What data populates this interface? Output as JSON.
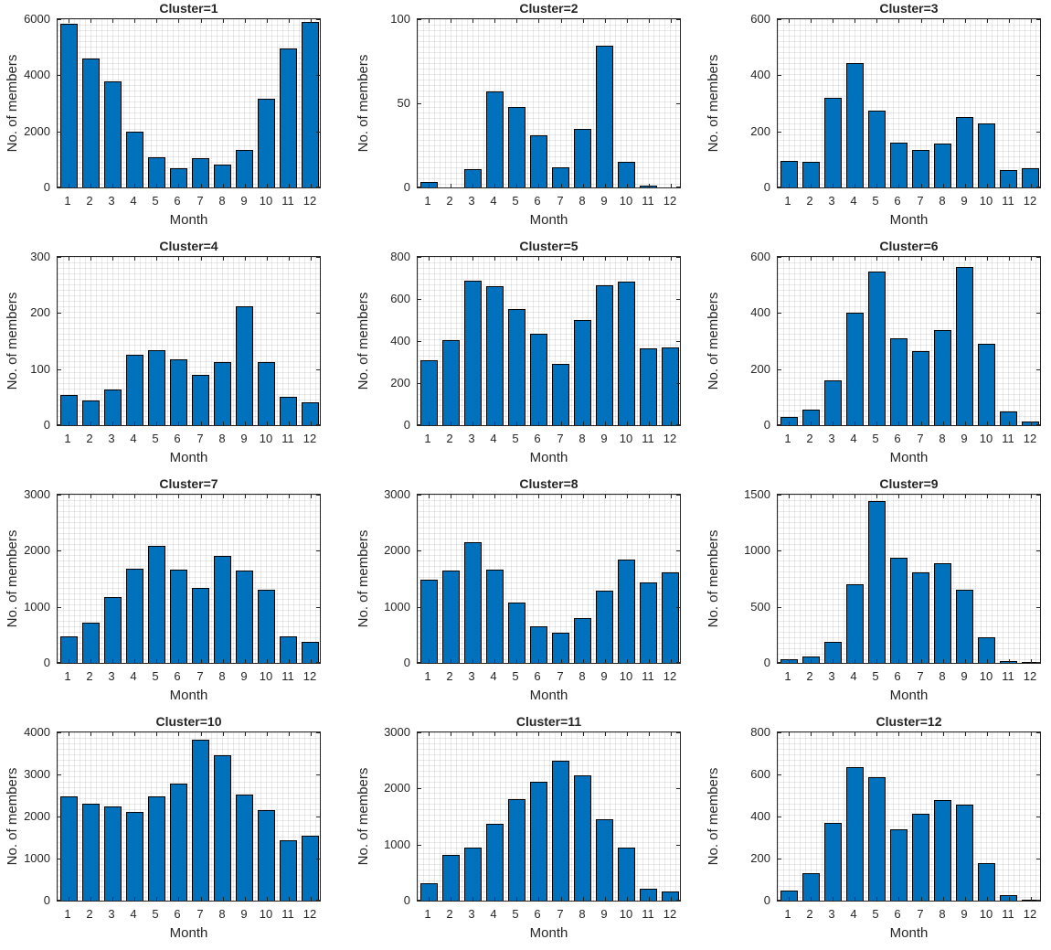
{
  "figure": {
    "background": "#ffffff",
    "bar_color": "#0072BD",
    "bar_edge_color": "#000000",
    "axis_color": "#262626",
    "tick_label_color": "#262626",
    "grid": "minor-dotted",
    "layout": "4 rows x 3 columns of bar subplots"
  },
  "chart_data": [
    {
      "type": "bar",
      "title": "Cluster=1",
      "xlabel": "Month",
      "ylabel": "No. of members",
      "categories": [
        "1",
        "2",
        "3",
        "4",
        "5",
        "6",
        "7",
        "8",
        "9",
        "10",
        "11",
        "12"
      ],
      "values": [
        5850,
        4600,
        3780,
        1980,
        1080,
        700,
        1050,
        830,
        1350,
        3150,
        4950,
        5900
      ],
      "ylim": [
        0,
        6000
      ],
      "yticks": [
        0,
        2000,
        4000,
        6000
      ],
      "legend": "none"
    },
    {
      "type": "bar",
      "title": "Cluster=2",
      "xlabel": "Month",
      "ylabel": "No. of members",
      "categories": [
        "1",
        "2",
        "3",
        "4",
        "5",
        "6",
        "7",
        "8",
        "9",
        "10",
        "11",
        "12"
      ],
      "values": [
        3,
        0,
        11,
        57,
        48,
        31,
        12,
        35,
        84,
        15,
        1,
        0
      ],
      "ylim": [
        0,
        100
      ],
      "yticks": [
        0,
        50,
        100
      ],
      "legend": "none"
    },
    {
      "type": "bar",
      "title": "Cluster=3",
      "xlabel": "Month",
      "ylabel": "No. of members",
      "categories": [
        "1",
        "2",
        "3",
        "4",
        "5",
        "6",
        "7",
        "8",
        "9",
        "10",
        "11",
        "12"
      ],
      "values": [
        95,
        92,
        320,
        443,
        275,
        160,
        135,
        157,
        252,
        228,
        62,
        68
      ],
      "ylim": [
        0,
        600
      ],
      "yticks": [
        0,
        200,
        400,
        600
      ],
      "legend": "none"
    },
    {
      "type": "bar",
      "title": "Cluster=4",
      "xlabel": "Month",
      "ylabel": "No. of members",
      "categories": [
        "1",
        "2",
        "3",
        "4",
        "5",
        "6",
        "7",
        "8",
        "9",
        "10",
        "11",
        "12"
      ],
      "values": [
        53,
        44,
        64,
        125,
        134,
        118,
        89,
        113,
        212,
        112,
        50,
        41
      ],
      "ylim": [
        0,
        300
      ],
      "yticks": [
        0,
        100,
        200,
        300
      ],
      "legend": "none"
    },
    {
      "type": "bar",
      "title": "Cluster=5",
      "xlabel": "Month",
      "ylabel": "No. of members",
      "categories": [
        "1",
        "2",
        "3",
        "4",
        "5",
        "6",
        "7",
        "8",
        "9",
        "10",
        "11",
        "12"
      ],
      "values": [
        310,
        405,
        688,
        660,
        552,
        435,
        290,
        502,
        665,
        683,
        365,
        370
      ],
      "ylim": [
        0,
        800
      ],
      "yticks": [
        0,
        200,
        400,
        600,
        800
      ],
      "legend": "none"
    },
    {
      "type": "bar",
      "title": "Cluster=6",
      "xlabel": "Month",
      "ylabel": "No. of members",
      "categories": [
        "1",
        "2",
        "3",
        "4",
        "5",
        "6",
        "7",
        "8",
        "9",
        "10",
        "11",
        "12"
      ],
      "values": [
        28,
        57,
        160,
        400,
        548,
        310,
        265,
        340,
        565,
        290,
        48,
        12
      ],
      "ylim": [
        0,
        600
      ],
      "yticks": [
        0,
        200,
        400,
        600
      ],
      "legend": "none"
    },
    {
      "type": "bar",
      "title": "Cluster=7",
      "xlabel": "Month",
      "ylabel": "No. of members",
      "categories": [
        "1",
        "2",
        "3",
        "4",
        "5",
        "6",
        "7",
        "8",
        "9",
        "10",
        "11",
        "12"
      ],
      "values": [
        470,
        720,
        1170,
        1680,
        2080,
        1670,
        1330,
        1900,
        1650,
        1310,
        470,
        380
      ],
      "ylim": [
        0,
        3000
      ],
      "yticks": [
        0,
        1000,
        2000,
        3000
      ],
      "legend": "none"
    },
    {
      "type": "bar",
      "title": "Cluster=8",
      "xlabel": "Month",
      "ylabel": "No. of members",
      "categories": [
        "1",
        "2",
        "3",
        "4",
        "5",
        "6",
        "7",
        "8",
        "9",
        "10",
        "11",
        "12"
      ],
      "values": [
        1480,
        1650,
        2150,
        1660,
        1080,
        660,
        530,
        800,
        1290,
        1840,
        1430,
        1620
      ],
      "ylim": [
        0,
        3000
      ],
      "yticks": [
        0,
        1000,
        2000,
        3000
      ],
      "legend": "none"
    },
    {
      "type": "bar",
      "title": "Cluster=9",
      "xlabel": "Month",
      "ylabel": "No. of members",
      "categories": [
        "1",
        "2",
        "3",
        "4",
        "5",
        "6",
        "7",
        "8",
        "9",
        "10",
        "11",
        "12"
      ],
      "values": [
        30,
        60,
        185,
        700,
        1440,
        940,
        810,
        890,
        650,
        230,
        20,
        10
      ],
      "ylim": [
        0,
        1500
      ],
      "yticks": [
        0,
        500,
        1000,
        1500
      ],
      "legend": "none"
    },
    {
      "type": "bar",
      "title": "Cluster=10",
      "xlabel": "Month",
      "ylabel": "No. of members",
      "categories": [
        "1",
        "2",
        "3",
        "4",
        "5",
        "6",
        "7",
        "8",
        "9",
        "10",
        "11",
        "12"
      ],
      "values": [
        2470,
        2310,
        2230,
        2110,
        2480,
        2780,
        3820,
        3460,
        2530,
        2160,
        1430,
        1540
      ],
      "ylim": [
        0,
        4000
      ],
      "yticks": [
        0,
        1000,
        2000,
        3000,
        4000
      ],
      "legend": "none"
    },
    {
      "type": "bar",
      "title": "Cluster=11",
      "xlabel": "Month",
      "ylabel": "No. of members",
      "categories": [
        "1",
        "2",
        "3",
        "4",
        "5",
        "6",
        "7",
        "8",
        "9",
        "10",
        "11",
        "12"
      ],
      "values": [
        310,
        820,
        940,
        1370,
        1810,
        2120,
        2500,
        2230,
        1450,
        950,
        220,
        170
      ],
      "ylim": [
        0,
        3000
      ],
      "yticks": [
        0,
        1000,
        2000,
        3000
      ],
      "legend": "none"
    },
    {
      "type": "bar",
      "title": "Cluster=12",
      "xlabel": "Month",
      "ylabel": "No. of members",
      "categories": [
        "1",
        "2",
        "3",
        "4",
        "5",
        "6",
        "7",
        "8",
        "9",
        "10",
        "11",
        "12"
      ],
      "values": [
        48,
        130,
        370,
        635,
        588,
        340,
        415,
        480,
        458,
        180,
        25,
        5
      ],
      "ylim": [
        0,
        800
      ],
      "yticks": [
        0,
        200,
        400,
        600,
        800
      ],
      "legend": "none"
    }
  ]
}
